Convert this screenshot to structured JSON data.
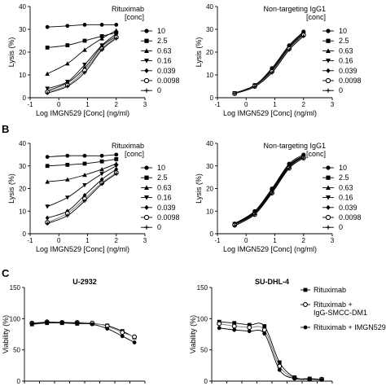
{
  "panels": [
    {
      "letter": "",
      "title": "",
      "legend_title": "",
      "legend_title2": ""
    },
    {
      "letter": "B",
      "title": "",
      "legend_title": "",
      "legend_title2": ""
    },
    {
      "letter": "C",
      "title": "",
      "legend_title": "",
      "legend_title2": ""
    }
  ],
  "chart_data": [
    {
      "id": "A-left",
      "type": "line",
      "panel": "A",
      "xlabel": "Log IMGN529 [Conc] (ng/ml)",
      "ylabel": "Lysis (%)",
      "xlim": [
        -1,
        3
      ],
      "ylim": [
        0,
        40
      ],
      "xticks": [
        "-1",
        "0",
        "1",
        "2",
        "3"
      ],
      "yticks": [
        "0",
        "10",
        "20",
        "30",
        "40"
      ],
      "legend_title": [
        "Rituximab",
        "[conc]"
      ],
      "x": [
        -0.4,
        0.3,
        0.9,
        1.5,
        2.0
      ],
      "series": [
        {
          "name": "10",
          "marker": "circle-filled",
          "values": [
            31,
            31.5,
            32,
            32,
            32
          ]
        },
        {
          "name": "2.5",
          "marker": "square",
          "values": [
            22,
            23,
            25,
            27,
            28.5
          ]
        },
        {
          "name": "0.63",
          "marker": "triangle-up",
          "values": [
            10.5,
            15,
            21,
            26,
            29.5
          ]
        },
        {
          "name": "0.16",
          "marker": "triangle-down",
          "values": [
            4,
            7,
            14.5,
            23,
            28
          ]
        },
        {
          "name": "0.039",
          "marker": "diamond",
          "values": [
            3,
            6.5,
            13,
            22.5,
            27
          ]
        },
        {
          "name": "0.0098",
          "marker": "circle-open",
          "values": [
            2.5,
            5.5,
            12,
            21.5,
            26.5
          ]
        },
        {
          "name": "0",
          "marker": "plus",
          "values": [
            2,
            5,
            11,
            21,
            26
          ]
        }
      ]
    },
    {
      "id": "A-right",
      "type": "line",
      "panel": "A",
      "xlabel": "Log IMGN529 [Conc] (ng/ml)",
      "ylabel": "Lysis (%)",
      "xlim": [
        -1,
        3
      ],
      "ylim": [
        0,
        40
      ],
      "xticks": [
        "-1",
        "0",
        "1",
        "2",
        "3"
      ],
      "yticks": [
        "0",
        "10",
        "20",
        "30",
        "40"
      ],
      "legend_title": [
        "Non-targeting IgG1",
        "[conc]"
      ],
      "x": [
        -0.4,
        0.3,
        0.9,
        1.5,
        2.0
      ],
      "series": [
        {
          "name": "10",
          "marker": "circle-filled",
          "values": [
            2,
            5.5,
            13,
            23,
            29
          ]
        },
        {
          "name": "2.5",
          "marker": "square",
          "values": [
            2,
            5.5,
            12.5,
            22.5,
            28.5
          ]
        },
        {
          "name": "0.63",
          "marker": "triangle-up",
          "values": [
            2,
            5.3,
            12,
            22,
            28
          ]
        },
        {
          "name": "0.16",
          "marker": "triangle-down",
          "values": [
            2,
            5.2,
            12,
            22,
            28
          ]
        },
        {
          "name": "0.039",
          "marker": "diamond",
          "values": [
            1.8,
            5,
            11.5,
            21.5,
            27.5
          ]
        },
        {
          "name": "0.0098",
          "marker": "circle-open",
          "values": [
            1.8,
            5,
            11.5,
            21.5,
            27.5
          ]
        },
        {
          "name": "0",
          "marker": "plus",
          "values": [
            1.8,
            4.8,
            11,
            21,
            27
          ]
        }
      ]
    },
    {
      "id": "B-left",
      "type": "line",
      "panel": "B",
      "xlabel": "Log IMGN529 [Conc] (ng/ml)",
      "ylabel": "Lysis (%)",
      "xlim": [
        -1,
        3
      ],
      "ylim": [
        0,
        40
      ],
      "xticks": [
        "-1",
        "0",
        "1",
        "2",
        "3"
      ],
      "yticks": [
        "0",
        "10",
        "20",
        "30",
        "40"
      ],
      "legend_title": [
        "Rituximab",
        "[conc]"
      ],
      "x": [
        -0.4,
        0.3,
        0.9,
        1.5,
        2.0
      ],
      "series": [
        {
          "name": "10",
          "marker": "circle-filled",
          "values": [
            34,
            34.5,
            34.5,
            34.5,
            35
          ]
        },
        {
          "name": "2.5",
          "marker": "square",
          "values": [
            30,
            30.5,
            31,
            32,
            33
          ]
        },
        {
          "name": "0.63",
          "marker": "triangle-up",
          "values": [
            23,
            24,
            26,
            28.5,
            31
          ]
        },
        {
          "name": "0.16",
          "marker": "triangle-down",
          "values": [
            12,
            16,
            21.5,
            26.5,
            30
          ]
        },
        {
          "name": "0.039",
          "marker": "diamond",
          "values": [
            7,
            10,
            17,
            24,
            28.5
          ]
        },
        {
          "name": "0.0098",
          "marker": "circle-open",
          "values": [
            5,
            9,
            15.5,
            22.5,
            27
          ]
        },
        {
          "name": "0",
          "marker": "plus",
          "values": [
            4.5,
            8,
            14.5,
            22,
            26.5
          ]
        }
      ]
    },
    {
      "id": "B-right",
      "type": "line",
      "panel": "B",
      "xlabel": "Log IMGN529 [Conc] (ng/ml)",
      "ylabel": "Lysis (%)",
      "xlim": [
        -1,
        3
      ],
      "ylim": [
        0,
        40
      ],
      "xticks": [
        "-1",
        "0",
        "1",
        "2",
        "3"
      ],
      "yticks": [
        "0",
        "10",
        "20",
        "30",
        "40"
      ],
      "legend_title": [
        "Non-targeting IgG1",
        "[conc]"
      ],
      "x": [
        -0.4,
        0.3,
        0.9,
        1.5,
        2.0
      ],
      "series": [
        {
          "name": "10",
          "marker": "circle-filled",
          "values": [
            4.5,
            10,
            20,
            31,
            35
          ]
        },
        {
          "name": "2.5",
          "marker": "square",
          "values": [
            4.3,
            9.5,
            19.5,
            30.5,
            34.5
          ]
        },
        {
          "name": "0.63",
          "marker": "triangle-up",
          "values": [
            4.2,
            9.5,
            19,
            30,
            34.5
          ]
        },
        {
          "name": "0.16",
          "marker": "triangle-down",
          "values": [
            4,
            9,
            19,
            30,
            34
          ]
        },
        {
          "name": "0.039",
          "marker": "diamond",
          "values": [
            4,
            9,
            18.5,
            29.5,
            34
          ]
        },
        {
          "name": "0.0098",
          "marker": "circle-open",
          "values": [
            3.8,
            8.5,
            18,
            29,
            33.5
          ]
        },
        {
          "name": "0",
          "marker": "plus",
          "values": [
            3.5,
            8.5,
            18,
            29,
            33.5
          ]
        }
      ]
    },
    {
      "id": "C-left",
      "type": "line",
      "panel": "C",
      "title": "U-2932",
      "ylabel": "Viability (%)",
      "ylim": [
        0,
        150
      ],
      "yticks": [
        "0",
        "50",
        "100",
        "150"
      ],
      "xlim": [
        0,
        8
      ],
      "x": [
        0.5,
        1.5,
        2.5,
        3.5,
        4.5,
        5.5,
        6.5,
        7.3
      ],
      "series": [
        {
          "marker": "square",
          "values": [
            91,
            93,
            93,
            92,
            92,
            89,
            80,
            70
          ]
        },
        {
          "marker": "circle-open",
          "values": [
            93,
            95,
            94,
            94,
            93,
            88,
            78,
            71
          ]
        },
        {
          "marker": "circle-filled",
          "values": [
            92,
            94,
            94,
            93,
            91,
            84,
            72,
            62
          ]
        }
      ]
    },
    {
      "id": "C-right",
      "type": "line",
      "panel": "C",
      "title": "SU-DHL-4",
      "ylabel": "Viability (%)",
      "ylim": [
        0,
        150
      ],
      "yticks": [
        "0",
        "50",
        "100",
        "150"
      ],
      "xlim": [
        0,
        8
      ],
      "x": [
        0.5,
        1.5,
        2.5,
        3.5,
        4.5,
        5.5,
        6.5,
        7.3
      ],
      "legend": [
        {
          "label": "Rituximab",
          "marker": "square"
        },
        {
          "label": "Rituximab +",
          "label2": "IgG-SMCC-DM1",
          "marker": "circle-open"
        },
        {
          "label": "Rituximab + IMGN529",
          "marker": "circle-filled"
        }
      ],
      "series": [
        {
          "marker": "square",
          "values": [
            95,
            93,
            90,
            88,
            30,
            6,
            4,
            3
          ]
        },
        {
          "marker": "circle-open",
          "values": [
            92,
            88,
            86,
            82,
            24,
            5,
            3,
            3
          ]
        },
        {
          "marker": "circle-filled",
          "values": [
            85,
            82,
            80,
            76,
            18,
            4,
            3,
            2
          ]
        }
      ]
    }
  ]
}
